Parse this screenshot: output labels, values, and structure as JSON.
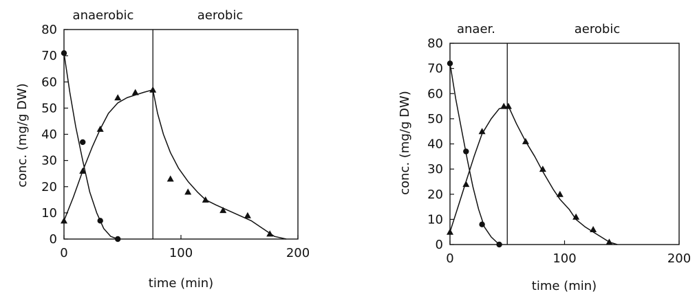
{
  "chart_data": [
    {
      "type": "scatter",
      "xlabel": "time (min)",
      "ylabel": "conc. (mg/g DW)",
      "xlim": [
        0,
        200
      ],
      "ylim": [
        0,
        80
      ],
      "xticks": [
        0,
        100,
        200
      ],
      "yticks": [
        0,
        10,
        20,
        30,
        40,
        50,
        60,
        70,
        80
      ],
      "phase_boundary_x": 76,
      "phases": [
        {
          "label": "anaerobic",
          "x_start": 0,
          "x_end": 76
        },
        {
          "label": "aerobic",
          "x_start": 76,
          "x_end": 200
        }
      ],
      "series": [
        {
          "marker": "circle",
          "points": [
            [
              0,
              71
            ],
            [
              16,
              37
            ],
            [
              31,
              7
            ],
            [
              46,
              0
            ]
          ],
          "curve": [
            [
              0,
              71
            ],
            [
              5,
              56
            ],
            [
              10,
              43
            ],
            [
              16,
              30
            ],
            [
              22,
              18
            ],
            [
              28,
              10
            ],
            [
              34,
              4
            ],
            [
              40,
              1
            ],
            [
              46,
              0
            ]
          ]
        },
        {
          "marker": "triangle",
          "points": [
            [
              0,
              7
            ],
            [
              16,
              26
            ],
            [
              31,
              42
            ],
            [
              46,
              54
            ],
            [
              61,
              56
            ],
            [
              76,
              57
            ],
            [
              91,
              23
            ],
            [
              106,
              18
            ],
            [
              121,
              15
            ],
            [
              136,
              11
            ],
            [
              157,
              9
            ],
            [
              176,
              2
            ]
          ],
          "curve": [
            [
              0,
              7
            ],
            [
              8,
              16
            ],
            [
              16,
              26
            ],
            [
              24,
              35
            ],
            [
              31,
              42
            ],
            [
              38,
              48
            ],
            [
              46,
              52
            ],
            [
              54,
              54
            ],
            [
              61,
              55
            ],
            [
              68,
              56
            ],
            [
              76,
              57
            ],
            [
              80,
              48
            ],
            [
              85,
              40
            ],
            [
              91,
              33
            ],
            [
              98,
              27
            ],
            [
              106,
              22
            ],
            [
              114,
              18
            ],
            [
              121,
              15
            ],
            [
              130,
              13
            ],
            [
              140,
              11
            ],
            [
              150,
              9
            ],
            [
              160,
              7
            ],
            [
              170,
              4
            ],
            [
              180,
              1
            ],
            [
              190,
              0
            ]
          ]
        }
      ]
    },
    {
      "type": "scatter",
      "xlabel": "time (min)",
      "ylabel": "conc. (mg/g DW)",
      "xlim": [
        0,
        200
      ],
      "ylim": [
        0,
        80
      ],
      "xticks": [
        0,
        100,
        200
      ],
      "yticks": [
        0,
        10,
        20,
        30,
        40,
        50,
        60,
        70,
        80
      ],
      "phase_boundary_x": 50,
      "phases": [
        {
          "label": "anaer.",
          "x_start": 0,
          "x_end": 50
        },
        {
          "label": "aerobic",
          "x_start": 50,
          "x_end": 200
        }
      ],
      "series": [
        {
          "marker": "circle",
          "points": [
            [
              0,
              72
            ],
            [
              14,
              37
            ],
            [
              28,
              8
            ],
            [
              43,
              0
            ]
          ],
          "curve": [
            [
              0,
              72
            ],
            [
              5,
              58
            ],
            [
              10,
              46
            ],
            [
              15,
              34
            ],
            [
              20,
              23
            ],
            [
              25,
              14
            ],
            [
              30,
              7
            ],
            [
              36,
              3
            ],
            [
              43,
              0
            ]
          ]
        },
        {
          "marker": "triangle",
          "points": [
            [
              0,
              5
            ],
            [
              14,
              24
            ],
            [
              28,
              45
            ],
            [
              47,
              55
            ],
            [
              51,
              55
            ],
            [
              66,
              41
            ],
            [
              81,
              30
            ],
            [
              96,
              20
            ],
            [
              110,
              11
            ],
            [
              125,
              6
            ],
            [
              139,
              1
            ]
          ],
          "curve": [
            [
              0,
              5
            ],
            [
              7,
              15
            ],
            [
              14,
              25
            ],
            [
              21,
              35
            ],
            [
              28,
              44
            ],
            [
              36,
              50
            ],
            [
              43,
              54
            ],
            [
              51,
              55
            ],
            [
              58,
              48
            ],
            [
              66,
              41
            ],
            [
              74,
              35
            ],
            [
              81,
              29
            ],
            [
              90,
              22
            ],
            [
              96,
              18
            ],
            [
              104,
              14
            ],
            [
              110,
              10
            ],
            [
              118,
              7
            ],
            [
              125,
              5
            ],
            [
              132,
              3
            ],
            [
              139,
              1
            ],
            [
              146,
              0
            ]
          ]
        }
      ]
    }
  ]
}
